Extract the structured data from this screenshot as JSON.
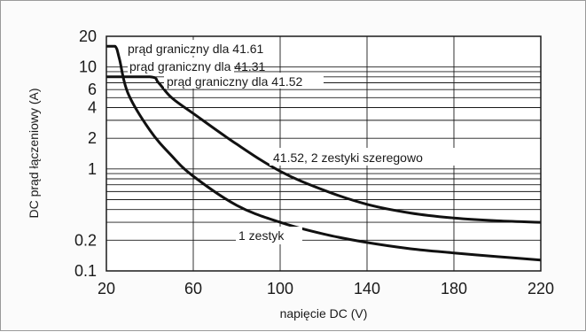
{
  "chart_data": {
    "type": "line",
    "xlabel": "napięcie DC (V)",
    "ylabel": "DC prąd łączeniowy (A)",
    "xlim": [
      20,
      220
    ],
    "ylim": [
      0.1,
      20
    ],
    "yscale": "log",
    "grid": true,
    "x_ticks": [
      "20",
      "60",
      "100",
      "140",
      "180",
      "220"
    ],
    "y_ticks": [
      "20",
      "10",
      "6",
      "4",
      "2",
      "1",
      "0.2",
      "0.1"
    ],
    "series": [
      {
        "name": "1 zestyk",
        "x": [
          20,
          24,
          26,
          30,
          40,
          50,
          60,
          80,
          100,
          120,
          140,
          160,
          180,
          200,
          220
        ],
        "y": [
          16,
          16,
          12,
          5.5,
          2.4,
          1.35,
          0.85,
          0.44,
          0.3,
          0.23,
          0.19,
          0.165,
          0.15,
          0.138,
          0.128
        ]
      },
      {
        "name": "41.52, 2 zestyki szeregowo",
        "x": [
          20,
          40,
          44,
          50,
          60,
          80,
          100,
          120,
          140,
          160,
          180,
          200,
          220
        ],
        "y": [
          8,
          8,
          7,
          5,
          3.5,
          1.75,
          0.95,
          0.62,
          0.45,
          0.37,
          0.33,
          0.31,
          0.3
        ]
      }
    ],
    "annotations": [
      "prąd graniczny dla 41.61",
      "prąd graniczny dla 41.31",
      "prąd graniczny dla 41.52"
    ]
  }
}
